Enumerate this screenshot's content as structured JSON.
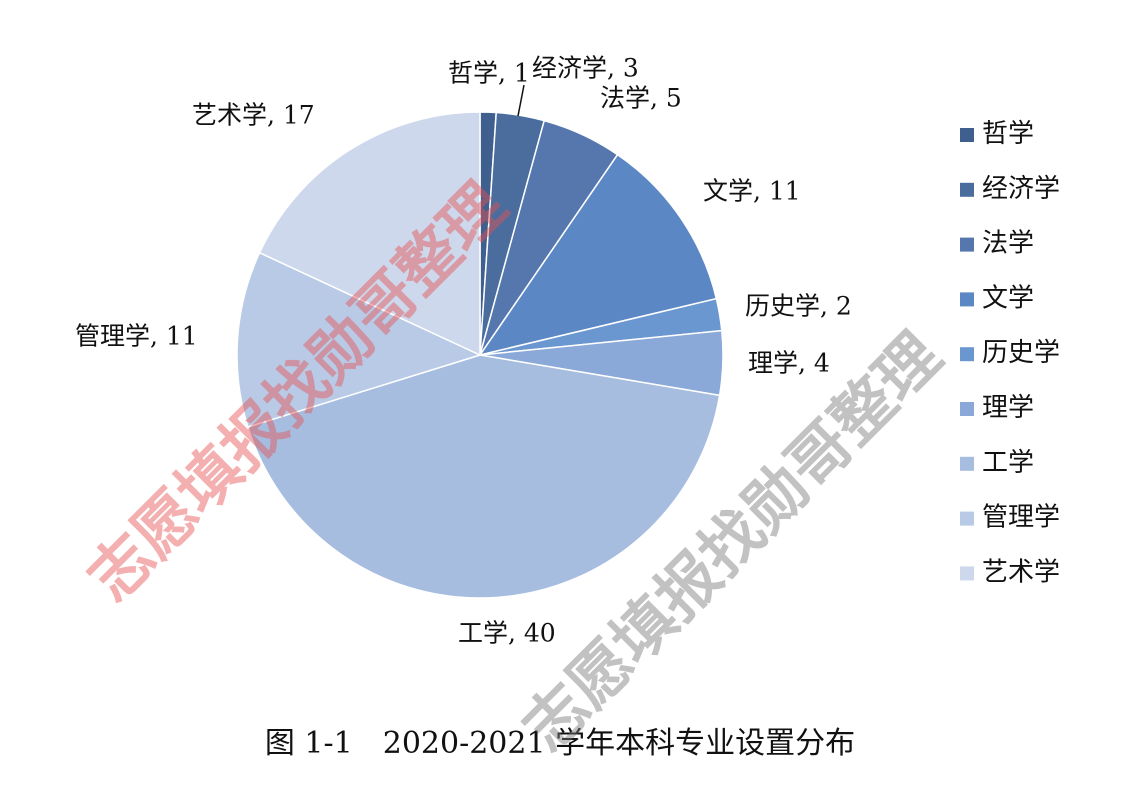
{
  "chart_data": {
    "type": "pie",
    "title": "图 1-1　2020-2021 学年本科专业设置分布",
    "categories": [
      "哲学",
      "经济学",
      "法学",
      "文学",
      "历史学",
      "理学",
      "工学",
      "管理学",
      "艺术学"
    ],
    "values": [
      1,
      3,
      5,
      11,
      2,
      4,
      40,
      11,
      17
    ],
    "value_labels": [
      "哲学, 1",
      "经济学, 3",
      "法学, 5",
      "文学, 11",
      "历史学, 2",
      "理学, 4",
      "工学, 40",
      "管理学, 11",
      "艺术学, 17"
    ],
    "colors": [
      "#3f5f8e",
      "#4a6d9e",
      "#5577ae",
      "#5b88c4",
      "#6b97d0",
      "#8aa9d8",
      "#a6bde0",
      "#b8cae6",
      "#cdd8ec"
    ],
    "legend": "right"
  },
  "watermarks": [
    "志愿填报找勋哥整理",
    "志愿填报找勋哥整理"
  ]
}
